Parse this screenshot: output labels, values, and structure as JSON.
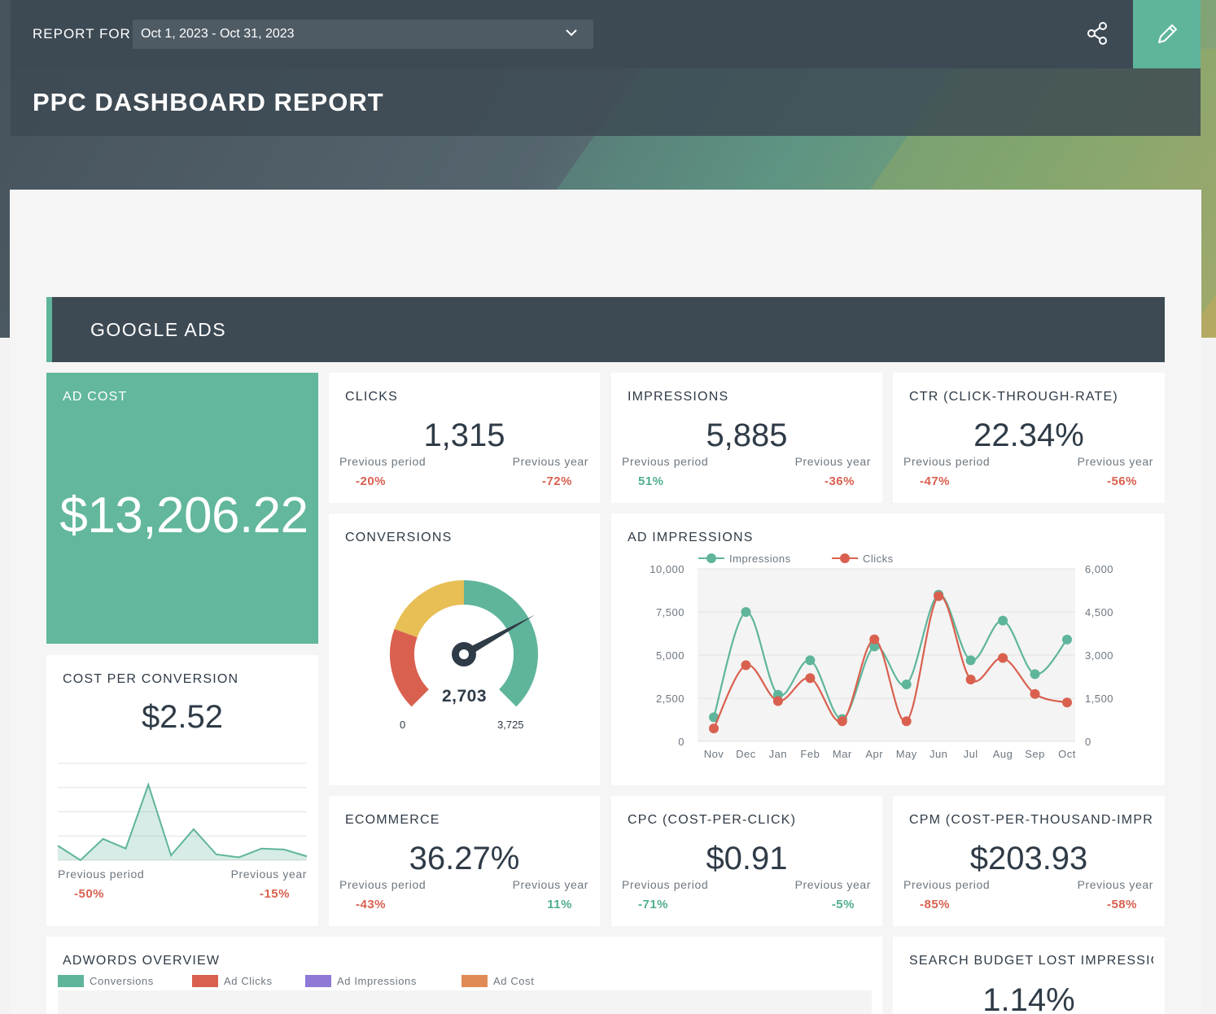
{
  "header": {
    "report_for_label": "REPORT FOR",
    "date_range": "Oct 1, 2023 - Oct 31, 2023",
    "title": "PPC DASHBOARD REPORT",
    "share_icon": "share-icon",
    "edit_icon": "pencil-icon"
  },
  "section": {
    "title": "GOOGLE ADS"
  },
  "colors": {
    "accent": "#5fb59b",
    "negative": "#d9604f",
    "positive": "#4fae92",
    "dark": "#3d4a54"
  },
  "metrics": {
    "ad_cost": {
      "label": "AD COST",
      "value": "$13,206.22"
    },
    "clicks": {
      "label": "CLICKS",
      "value": "1,315",
      "prev_period_label": "Previous period",
      "prev_period": "-20%",
      "prev_year_label": "Previous year",
      "prev_year": "-72%"
    },
    "impressions": {
      "label": "IMPRESSIONS",
      "value": "5,885",
      "prev_period_label": "Previous period",
      "prev_period": "51%",
      "prev_year_label": "Previous year",
      "prev_year": "-36%"
    },
    "ctr": {
      "label": "CTR (CLICK-THROUGH-RATE)",
      "value": "22.34%",
      "prev_period_label": "Previous period",
      "prev_period": "-47%",
      "prev_year_label": "Previous year",
      "prev_year": "-56%"
    },
    "cost_per_conversion": {
      "label": "COST PER CONVERSION",
      "value": "$2.52",
      "prev_period_label": "Previous period",
      "prev_period": "-50%",
      "prev_year_label": "Previous year",
      "prev_year": "-15%"
    },
    "ecommerce": {
      "label": "ECOMMERCE",
      "value": "36.27%",
      "prev_period_label": "Previous period",
      "prev_period": "-43%",
      "prev_year_label": "Previous year",
      "prev_year": "11%"
    },
    "cpc": {
      "label": "CPC (COST-PER-CLICK)",
      "value": "$0.91",
      "prev_period_label": "Previous period",
      "prev_period": "-71%",
      "prev_year_label": "Previous year",
      "prev_year": "-5%"
    },
    "cpm": {
      "label": "CPM (COST-PER-THOUSAND-IMPRI",
      "value": "$203.93",
      "prev_period_label": "Previous period",
      "prev_period": "-85%",
      "prev_year_label": "Previous year",
      "prev_year": "-58%"
    },
    "search_budget": {
      "label": "SEARCH BUDGET LOST IMPRESSIO",
      "value": "1.14%"
    }
  },
  "conversions": {
    "label": "CONVERSIONS",
    "value": "2,703",
    "min_label": "0",
    "max_label": "3,725",
    "gauge_value": 2703,
    "gauge_max": 3725
  },
  "adwords_overview": {
    "label": "ADWORDS OVERVIEW",
    "legend": [
      "Conversions",
      "Ad Clicks",
      "Ad Impressions",
      "Ad Cost"
    ],
    "legend_colors": [
      "#5fb59b",
      "#d9604f",
      "#8f78d6",
      "#e08b55"
    ]
  },
  "chart_data": [
    {
      "type": "line",
      "title": "AD IMPRESSIONS",
      "categories": [
        "Nov",
        "Dec",
        "Jan",
        "Feb",
        "Mar",
        "Apr",
        "May",
        "Jun",
        "Jul",
        "Aug",
        "Sep",
        "Oct"
      ],
      "series": [
        {
          "name": "Impressions",
          "axis": "left",
          "color": "#5fb59b",
          "values": [
            1400,
            7500,
            2700,
            4700,
            1300,
            5500,
            3300,
            8500,
            4700,
            7000,
            3900,
            5900
          ]
        },
        {
          "name": "Clicks",
          "axis": "right",
          "color": "#d9604f",
          "values": [
            450,
            2650,
            1400,
            2200,
            700,
            3550,
            700,
            5050,
            2150,
            2900,
            1650,
            1350
          ]
        }
      ],
      "y_left": {
        "ticks": [
          "0",
          "2,500",
          "5,000",
          "7,500",
          "10,000"
        ],
        "ylim": [
          0,
          10000
        ]
      },
      "y_right": {
        "ticks": [
          "0",
          "1,500",
          "3,000",
          "4,500",
          "6,000"
        ],
        "ylim": [
          0,
          6000
        ]
      },
      "grid": true,
      "legend": "top-left"
    },
    {
      "type": "area",
      "title": "",
      "values": [
        0.15,
        0.0,
        0.22,
        0.12,
        0.78,
        0.05,
        0.32,
        0.06,
        0.03,
        0.12,
        0.11,
        0.04
      ],
      "ylim": [
        0,
        1
      ],
      "grid": true,
      "color": "#5fb59b"
    }
  ]
}
